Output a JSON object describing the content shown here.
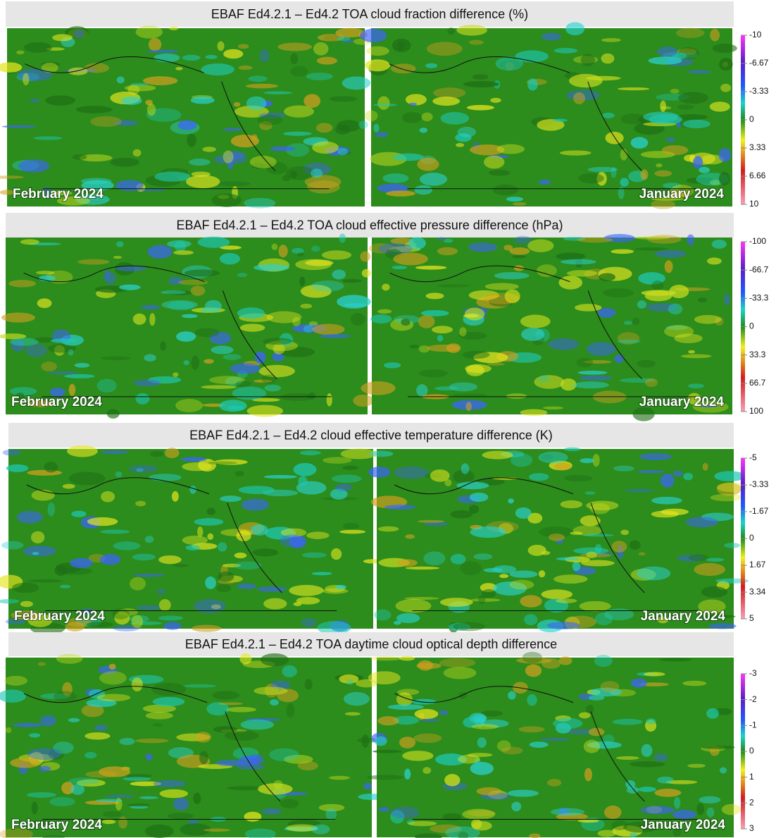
{
  "panels": [
    {
      "title": "EBAF Ed4.2.1 – Ed4.2 TOA cloud fraction difference  (%)",
      "left_label": "February 2024",
      "right_label": "January 2024",
      "colorbar": {
        "range": [
          -10,
          10
        ],
        "ticks": [
          -10,
          -6.67,
          -3.33,
          0,
          3.33,
          6.66,
          10
        ]
      }
    },
    {
      "title": "EBAF Ed4.2.1 – Ed4.2 TOA cloud effective pressure difference  (hPa)",
      "left_label": "February 2024",
      "right_label": "January 2024",
      "colorbar": {
        "range": [
          -100,
          100
        ],
        "ticks": [
          -100,
          -66.7,
          -33.3,
          0,
          33.3,
          66.7,
          100
        ]
      }
    },
    {
      "title": "EBAF Ed4.2.1 – Ed4.2 cloud effective temperature difference  (K)",
      "left_label": "February 2024",
      "right_label": "January 2024",
      "colorbar": {
        "range": [
          -5,
          5
        ],
        "ticks": [
          -5,
          -3.33,
          -1.67,
          0,
          1.67,
          3.34,
          5
        ]
      }
    },
    {
      "title": "EBAF Ed4.2.1 – Ed4.2 TOA daytime cloud optical depth difference",
      "left_label": "February 2024",
      "right_label": "January 2024",
      "colorbar": {
        "range": [
          -3,
          3
        ],
        "ticks": [
          -3,
          -2,
          -1,
          0,
          1,
          2,
          3
        ]
      }
    }
  ]
}
